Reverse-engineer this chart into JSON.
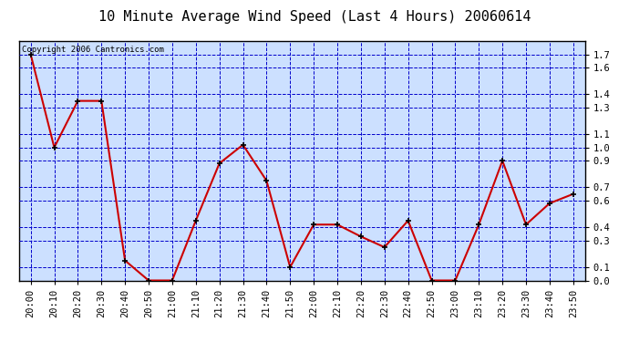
{
  "title": "10 Minute Average Wind Speed (Last 4 Hours) 20060614",
  "copyright_text": "Copyright 2006 Cantronics.com",
  "x_labels": [
    "20:00",
    "20:10",
    "20:20",
    "20:30",
    "20:40",
    "20:50",
    "21:00",
    "21:10",
    "21:20",
    "21:30",
    "21:40",
    "21:50",
    "22:00",
    "22:10",
    "22:20",
    "22:30",
    "22:40",
    "22:50",
    "23:00",
    "23:10",
    "23:20",
    "23:30",
    "23:40",
    "23:50"
  ],
  "y_values": [
    1.7,
    1.0,
    1.35,
    1.35,
    0.15,
    0.0,
    0.0,
    0.45,
    0.88,
    1.02,
    0.75,
    0.1,
    0.42,
    0.42,
    0.33,
    0.25,
    0.45,
    0.0,
    0.0,
    0.42,
    0.9,
    0.42,
    0.58,
    0.65
  ],
  "ylim": [
    0.0,
    1.8
  ],
  "yticks": [
    0.0,
    0.1,
    0.3,
    0.4,
    0.6,
    0.7,
    0.9,
    1.0,
    1.1,
    1.3,
    1.4,
    1.6,
    1.7
  ],
  "line_color": "#cc0000",
  "marker_color": "#000000",
  "bg_color": "#ffffff",
  "plot_bg_color": "#cce0ff",
  "grid_color": "#0000cc",
  "axis_color": "#000000",
  "title_fontsize": 11,
  "tick_fontsize": 7.5,
  "copyright_fontsize": 6.5
}
